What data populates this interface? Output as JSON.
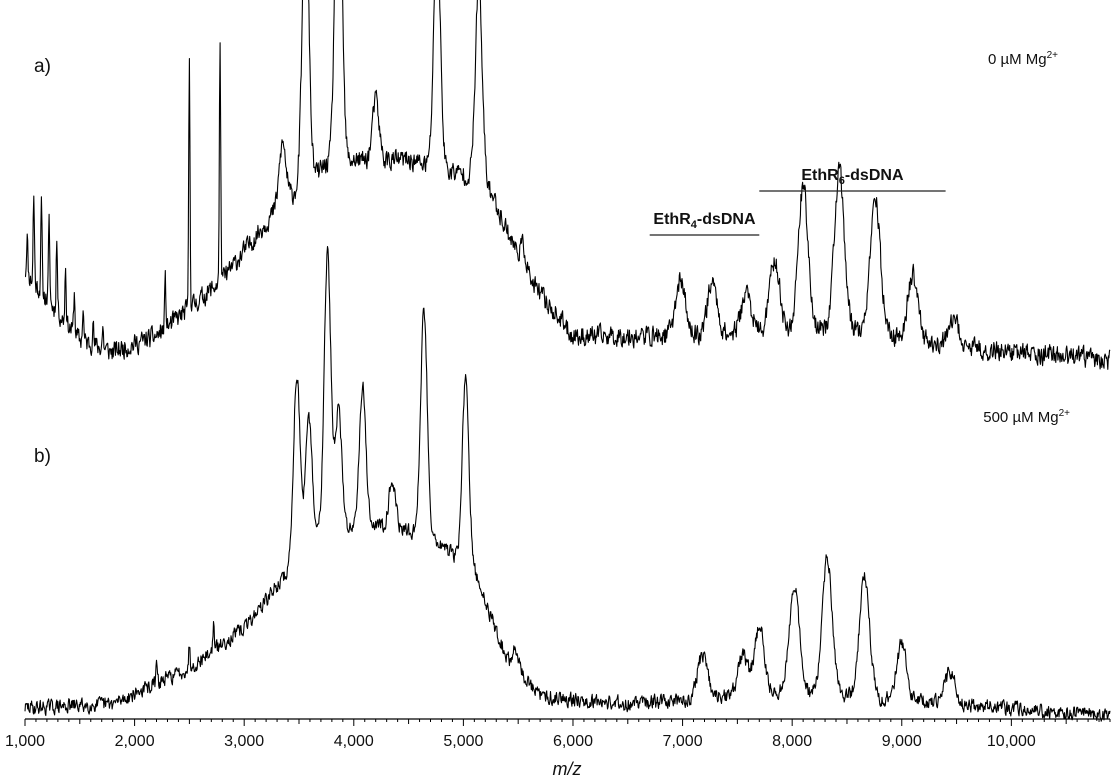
{
  "chart_data": {
    "type": "line",
    "xlabel": "m/z",
    "ylabel": "",
    "xlim": [
      1000,
      10900
    ],
    "x_ticks": [
      {
        "value": 1000,
        "label": "1,000"
      },
      {
        "value": 2000,
        "label": "2,000"
      },
      {
        "value": 3000,
        "label": "3,000"
      },
      {
        "value": 4000,
        "label": "4,000"
      },
      {
        "value": 5000,
        "label": "5,000"
      },
      {
        "value": 6000,
        "label": "6,000"
      },
      {
        "value": 7000,
        "label": "7,000"
      },
      {
        "value": 8000,
        "label": "8,000"
      },
      {
        "value": 9000,
        "label": "9,000"
      },
      {
        "value": 10000,
        "label": "10,000"
      }
    ],
    "grid": false,
    "panels": [
      {
        "label": "a)",
        "condition": {
          "main": "0 µM Mg",
          "sup": "2+"
        },
        "series": {
          "baseline": [
            [
              1000,
              0.22
            ],
            [
              1500,
              0.05
            ],
            [
              1800,
              0.02
            ],
            [
              2200,
              0.06
            ],
            [
              2800,
              0.2
            ],
            [
              3300,
              0.38
            ],
            [
              3800,
              0.5
            ],
            [
              4500,
              0.5
            ],
            [
              5200,
              0.45
            ],
            [
              5600,
              0.2
            ],
            [
              6000,
              0.06
            ],
            [
              7000,
              0.06
            ],
            [
              8500,
              0.08
            ],
            [
              9600,
              0.03
            ],
            [
              10900,
              0.0
            ]
          ],
          "peaks": [
            {
              "mz": 1020,
              "height": 0.1
            },
            {
              "mz": 1080,
              "height": 0.22
            },
            {
              "mz": 1150,
              "height": 0.22
            },
            {
              "mz": 1220,
              "height": 0.2
            },
            {
              "mz": 1290,
              "height": 0.18
            },
            {
              "mz": 1370,
              "height": 0.14
            },
            {
              "mz": 1450,
              "height": 0.1
            },
            {
              "mz": 1530,
              "height": 0.08
            },
            {
              "mz": 1620,
              "height": 0.06
            },
            {
              "mz": 1710,
              "height": 0.05
            },
            {
              "mz": 2280,
              "height": 0.12
            },
            {
              "mz": 2500,
              "height": 0.62
            },
            {
              "mz": 2780,
              "height": 0.6
            },
            {
              "mz": 3350,
              "height": 0.15
            },
            {
              "mz": 3560,
              "height": 0.7
            },
            {
              "mz": 3860,
              "height": 0.88
            },
            {
              "mz": 4200,
              "height": 0.15
            },
            {
              "mz": 4760,
              "height": 0.58
            },
            {
              "mz": 5140,
              "height": 0.48
            },
            {
              "mz": 5550,
              "height": 0.05
            },
            {
              "mz": 6980,
              "height": 0.14
            },
            {
              "mz": 7270,
              "height": 0.13
            },
            {
              "mz": 7580,
              "height": 0.1
            },
            {
              "mz": 7840,
              "height": 0.18
            },
            {
              "mz": 8100,
              "height": 0.36
            },
            {
              "mz": 8430,
              "height": 0.39
            },
            {
              "mz": 8760,
              "height": 0.33
            },
            {
              "mz": 9100,
              "height": 0.16
            },
            {
              "mz": 9480,
              "height": 0.06
            }
          ]
        },
        "annotations": [
          {
            "label": "EthR",
            "sub": "4",
            "suffix": "-dsDNA",
            "x_start": 6700,
            "x_end": 7700
          },
          {
            "label": "EthR",
            "sub": "6",
            "suffix": "-dsDNA",
            "x_start": 7700,
            "x_end": 9400
          }
        ]
      },
      {
        "label": "b)",
        "condition": {
          "main": "500 µM Mg",
          "sup": "2+"
        },
        "series": {
          "baseline": [
            [
              1000,
              0.02
            ],
            [
              1800,
              0.03
            ],
            [
              2500,
              0.12
            ],
            [
              3000,
              0.22
            ],
            [
              3400,
              0.36
            ],
            [
              3700,
              0.46
            ],
            [
              4200,
              0.48
            ],
            [
              4700,
              0.45
            ],
            [
              5100,
              0.36
            ],
            [
              5400,
              0.14
            ],
            [
              5700,
              0.05
            ],
            [
              6500,
              0.03
            ],
            [
              7000,
              0.04
            ],
            [
              8000,
              0.06
            ],
            [
              9500,
              0.03
            ],
            [
              10900,
              0.0
            ]
          ],
          "peaks": [
            {
              "mz": 2200,
              "height": 0.05
            },
            {
              "mz": 2500,
              "height": 0.06
            },
            {
              "mz": 2720,
              "height": 0.07
            },
            {
              "mz": 3480,
              "height": 0.47
            },
            {
              "mz": 3590,
              "height": 0.32
            },
            {
              "mz": 3760,
              "height": 0.7
            },
            {
              "mz": 3860,
              "height": 0.3
            },
            {
              "mz": 4080,
              "height": 0.35
            },
            {
              "mz": 4350,
              "height": 0.12
            },
            {
              "mz": 4640,
              "height": 0.56
            },
            {
              "mz": 5020,
              "height": 0.46
            },
            {
              "mz": 5480,
              "height": 0.05
            },
            {
              "mz": 7180,
              "height": 0.11
            },
            {
              "mz": 7550,
              "height": 0.1
            },
            {
              "mz": 7700,
              "height": 0.17
            },
            {
              "mz": 8020,
              "height": 0.27
            },
            {
              "mz": 8320,
              "height": 0.34
            },
            {
              "mz": 8660,
              "height": 0.31
            },
            {
              "mz": 9000,
              "height": 0.14
            },
            {
              "mz": 9440,
              "height": 0.08
            }
          ]
        }
      }
    ]
  }
}
